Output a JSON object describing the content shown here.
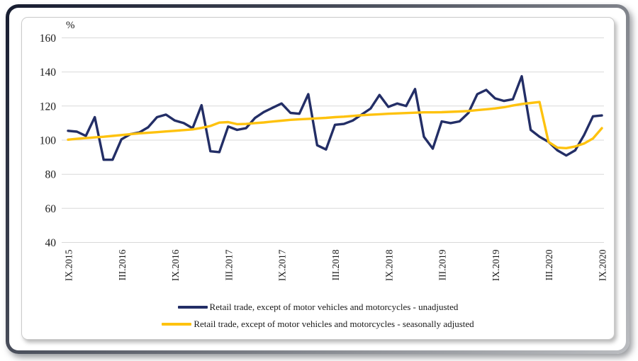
{
  "chart": {
    "percent_label": "%"
  },
  "chart_data": {
    "type": "line",
    "title": "",
    "xlabel": "",
    "ylabel": "%",
    "ylim": [
      40,
      160
    ],
    "yticks": [
      40,
      60,
      80,
      100,
      120,
      140,
      160
    ],
    "grid": true,
    "legend_position": "bottom",
    "x_frequency": "monthly",
    "x_start": "IX.2015",
    "x_end": "IX.2020",
    "x_tick_every": 6,
    "x_tick_labels": [
      "IX.2015",
      "III.2016",
      "IX.2016",
      "III.2017",
      "IX.2017",
      "III.2018",
      "IX.2018",
      "III.2019",
      "IX.2019",
      "III.2020",
      "IX.2020"
    ],
    "grid_color": "#d9d9d9",
    "text_color": "#1a1a1a",
    "series": [
      {
        "name": "Retail trade, except of motor vehicles and motorcycles - unadjusted",
        "color": "#232e66",
        "values": [
          105.5,
          105,
          102.5,
          113.5,
          88.5,
          88.5,
          100.5,
          103.5,
          104.5,
          107.5,
          113.5,
          115,
          111.5,
          110,
          107,
          120.5,
          93.5,
          93,
          108,
          106,
          107,
          113,
          116.5,
          119,
          121.5,
          116,
          115.5,
          127,
          97,
          94.5,
          109,
          109.5,
          111.5,
          115,
          118.5,
          126.5,
          119.5,
          121.5,
          120,
          130,
          102,
          95,
          111,
          110,
          111,
          116,
          127,
          129.5,
          124.5,
          123,
          124,
          137.5,
          106,
          102,
          99,
          94,
          91,
          94,
          103,
          114,
          114.5
        ]
      },
      {
        "name": "Retail trade, except of motor vehicles and motorcycles - seasonally adjusted",
        "color": "#fec20e",
        "values": [
          100.3,
          100.8,
          101.2,
          101.6,
          102,
          102.5,
          103,
          103.5,
          104,
          104.3,
          104.7,
          105.1,
          105.5,
          105.9,
          106.3,
          107.2,
          108.3,
          110.3,
          110.6,
          109.4,
          109.5,
          110,
          110.4,
          110.9,
          111.4,
          111.9,
          112.2,
          112.5,
          112.8,
          113.1,
          113.5,
          113.8,
          114.2,
          114.6,
          114.9,
          115.2,
          115.5,
          115.7,
          115.9,
          116.1,
          116.3,
          116.3,
          116.4,
          116.6,
          116.8,
          117.1,
          117.6,
          118.1,
          118.6,
          119.3,
          120.3,
          121.2,
          121.8,
          122.4,
          99,
          95.6,
          95.3,
          96.3,
          98,
          101,
          107
        ]
      }
    ]
  }
}
